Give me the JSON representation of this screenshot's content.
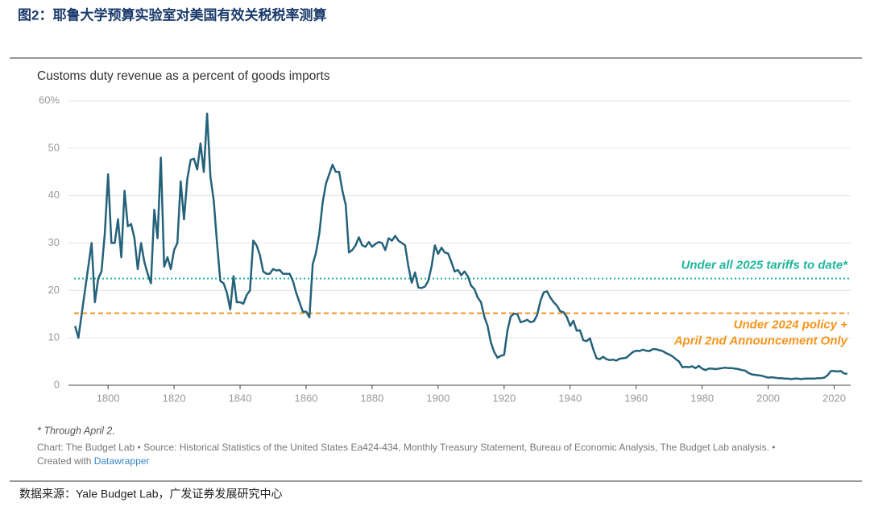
{
  "header": {
    "title": "图2：耶鲁大学预算实验室对美国有效关税税率测算"
  },
  "chart_data": {
    "type": "line",
    "title": "Customs duty revenue as a percent of goods imports",
    "x": [
      1790,
      1791,
      1792,
      1793,
      1794,
      1795,
      1796,
      1797,
      1798,
      1799,
      1800,
      1801,
      1802,
      1803,
      1804,
      1805,
      1806,
      1807,
      1808,
      1809,
      1810,
      1811,
      1812,
      1813,
      1814,
      1815,
      1816,
      1817,
      1818,
      1819,
      1820,
      1821,
      1822,
      1823,
      1824,
      1825,
      1826,
      1827,
      1828,
      1829,
      1830,
      1831,
      1832,
      1833,
      1834,
      1835,
      1836,
      1837,
      1838,
      1839,
      1840,
      1841,
      1842,
      1843,
      1844,
      1845,
      1846,
      1847,
      1848,
      1849,
      1850,
      1851,
      1852,
      1853,
      1854,
      1855,
      1856,
      1857,
      1858,
      1859,
      1860,
      1861,
      1862,
      1863,
      1864,
      1865,
      1866,
      1867,
      1868,
      1869,
      1870,
      1871,
      1872,
      1873,
      1874,
      1875,
      1876,
      1877,
      1878,
      1879,
      1880,
      1881,
      1882,
      1883,
      1884,
      1885,
      1886,
      1887,
      1888,
      1889,
      1890,
      1891,
      1892,
      1893,
      1894,
      1895,
      1896,
      1897,
      1898,
      1899,
      1900,
      1901,
      1902,
      1903,
      1904,
      1905,
      1906,
      1907,
      1908,
      1909,
      1910,
      1911,
      1912,
      1913,
      1914,
      1915,
      1916,
      1917,
      1918,
      1919,
      1920,
      1921,
      1922,
      1923,
      1924,
      1925,
      1926,
      1927,
      1928,
      1929,
      1930,
      1931,
      1932,
      1933,
      1934,
      1935,
      1936,
      1937,
      1938,
      1939,
      1940,
      1941,
      1942,
      1943,
      1944,
      1945,
      1946,
      1947,
      1948,
      1949,
      1950,
      1951,
      1952,
      1953,
      1954,
      1955,
      1956,
      1957,
      1958,
      1959,
      1960,
      1961,
      1962,
      1963,
      1964,
      1965,
      1966,
      1967,
      1968,
      1969,
      1970,
      1971,
      1972,
      1973,
      1974,
      1975,
      1976,
      1977,
      1978,
      1979,
      1980,
      1981,
      1982,
      1983,
      1984,
      1985,
      1986,
      1987,
      1988,
      1989,
      1990,
      1991,
      1992,
      1993,
      1994,
      1995,
      1996,
      1997,
      1998,
      1999,
      2000,
      2001,
      2002,
      2003,
      2004,
      2005,
      2006,
      2007,
      2008,
      2009,
      2010,
      2011,
      2012,
      2013,
      2014,
      2015,
      2016,
      2017,
      2018,
      2019,
      2020,
      2021,
      2022,
      2023,
      2024
    ],
    "values": [
      12.5,
      10,
      15,
      20,
      25,
      30,
      17.5,
      22.5,
      24,
      32,
      44.5,
      30,
      30,
      35,
      27,
      41,
      33.5,
      34,
      31,
      24.5,
      30,
      26,
      23.5,
      21.5,
      37,
      31,
      48,
      25,
      27,
      24.5,
      28.5,
      30,
      43,
      35,
      43.5,
      47.5,
      47.8,
      45.5,
      51,
      45,
      57.3,
      44,
      39,
      30,
      22,
      21.5,
      19.5,
      16,
      23,
      17.5,
      17.5,
      17.2,
      19,
      20,
      30.5,
      29.5,
      27.5,
      24,
      23.5,
      23.5,
      24.5,
      24.2,
      24.3,
      23.5,
      23.5,
      23.5,
      22,
      19.5,
      17.5,
      15.5,
      15.5,
      14.3,
      25.5,
      28,
      32,
      38.5,
      42.5,
      44.5,
      46.5,
      45,
      45,
      41,
      38,
      28,
      28.5,
      29.5,
      31.2,
      29.5,
      29.2,
      30.2,
      29.2,
      29.8,
      30.2,
      30,
      28.5,
      31,
      30.5,
      31.5,
      30.5,
      30,
      29.5,
      25,
      21.6,
      23.8,
      20.6,
      20.5,
      20.8,
      22,
      25,
      29.5,
      27.7,
      29,
      28,
      27.8,
      26,
      24,
      24.3,
      23.2,
      24,
      23,
      21,
      20.3,
      18.5,
      17.5,
      14.5,
      12.5,
      9,
      7,
      5.8,
      6.2,
      6.4,
      11.5,
      14.5,
      15.1,
      15,
      13.3,
      13.5,
      13.8,
      13.3,
      13.5,
      14.8,
      17.8,
      19.6,
      19.8,
      18.5,
      17.5,
      16.8,
      15.6,
      15.4,
      14.4,
      12.5,
      13.6,
      11.5,
      11.6,
      9.5,
      9.3,
      9.9,
      7.6,
      5.7,
      5.5,
      6,
      5.5,
      5.3,
      5.4,
      5.2,
      5.6,
      5.7,
      5.8,
      6.4,
      7,
      7.3,
      7.2,
      7.5,
      7.3,
      7.2,
      7.6,
      7.6,
      7.4,
      7.2,
      6.8,
      6.5,
      6.1,
      5.5,
      5,
      3.8,
      3.9,
      3.8,
      4,
      3.6,
      4.1,
      3.5,
      3.2,
      3.5,
      3.5,
      3.4,
      3.5,
      3.6,
      3.7,
      3.6,
      3.6,
      3.5,
      3.4,
      3.2,
      3.1,
      2.6,
      2.3,
      2.2,
      2.1,
      2,
      1.8,
      1.6,
      1.7,
      1.6,
      1.5,
      1.5,
      1.4,
      1.4,
      1.3,
      1.4,
      1.4,
      1.3,
      1.4,
      1.4,
      1.4,
      1.4,
      1.5,
      1.5,
      1.6,
      2.1,
      3.0,
      3.0,
      2.9,
      3.0,
      2.5,
      2.4
    ],
    "color": "#24627a",
    "xlim": [
      1788,
      2025
    ],
    "ylim": [
      0,
      60
    ],
    "xticks": [
      1800,
      1820,
      1840,
      1860,
      1880,
      1900,
      1920,
      1940,
      1960,
      1980,
      2000,
      2020
    ],
    "yticks": [
      0,
      10,
      20,
      30,
      40,
      {
        "value": 60,
        "label": "60%"
      },
      50
    ],
    "grid": true,
    "reference_lines": [
      {
        "value": 22.5,
        "color": "#1fb59b",
        "label": [
          "Under all 2025 tariffs to date*"
        ]
      },
      {
        "value": 15.2,
        "color": "#f4951d",
        "label": [
          "Under 2024 policy +",
          "April 2nd Announcement Only"
        ]
      }
    ],
    "note": "* Through April 2.",
    "source": "Chart: The Budget Lab • Source: Historical Statistics of the United States Ea424-434, Monthly Treasury Statement, Bureau of Economic Analysis, The Budget Lab analysis. •",
    "credit": "Created with",
    "credit_link": "Datawrapper"
  },
  "footer": {
    "source": "数据来源：Yale Budget Lab，广发证券发展研究中心"
  }
}
